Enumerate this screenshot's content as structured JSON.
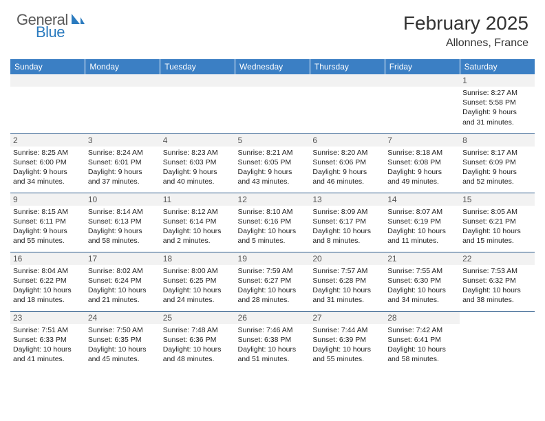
{
  "logo": {
    "word1": "General",
    "word2": "Blue",
    "icon_color": "#2b7bbf",
    "text_gray": "#5a5a5a"
  },
  "title": "February 2025",
  "location": "Allonnes, France",
  "colors": {
    "header_bg": "#3b7fc4",
    "header_text": "#ffffff",
    "daynum_bg": "#f2f2f2",
    "row_border": "#2b5a8a",
    "body_text": "#222222"
  },
  "day_headers": [
    "Sunday",
    "Monday",
    "Tuesday",
    "Wednesday",
    "Thursday",
    "Friday",
    "Saturday"
  ],
  "weeks": [
    [
      null,
      null,
      null,
      null,
      null,
      null,
      {
        "n": "1",
        "sr": "Sunrise: 8:27 AM",
        "ss": "Sunset: 5:58 PM",
        "dl1": "Daylight: 9 hours",
        "dl2": "and 31 minutes."
      }
    ],
    [
      {
        "n": "2",
        "sr": "Sunrise: 8:25 AM",
        "ss": "Sunset: 6:00 PM",
        "dl1": "Daylight: 9 hours",
        "dl2": "and 34 minutes."
      },
      {
        "n": "3",
        "sr": "Sunrise: 8:24 AM",
        "ss": "Sunset: 6:01 PM",
        "dl1": "Daylight: 9 hours",
        "dl2": "and 37 minutes."
      },
      {
        "n": "4",
        "sr": "Sunrise: 8:23 AM",
        "ss": "Sunset: 6:03 PM",
        "dl1": "Daylight: 9 hours",
        "dl2": "and 40 minutes."
      },
      {
        "n": "5",
        "sr": "Sunrise: 8:21 AM",
        "ss": "Sunset: 6:05 PM",
        "dl1": "Daylight: 9 hours",
        "dl2": "and 43 minutes."
      },
      {
        "n": "6",
        "sr": "Sunrise: 8:20 AM",
        "ss": "Sunset: 6:06 PM",
        "dl1": "Daylight: 9 hours",
        "dl2": "and 46 minutes."
      },
      {
        "n": "7",
        "sr": "Sunrise: 8:18 AM",
        "ss": "Sunset: 6:08 PM",
        "dl1": "Daylight: 9 hours",
        "dl2": "and 49 minutes."
      },
      {
        "n": "8",
        "sr": "Sunrise: 8:17 AM",
        "ss": "Sunset: 6:09 PM",
        "dl1": "Daylight: 9 hours",
        "dl2": "and 52 minutes."
      }
    ],
    [
      {
        "n": "9",
        "sr": "Sunrise: 8:15 AM",
        "ss": "Sunset: 6:11 PM",
        "dl1": "Daylight: 9 hours",
        "dl2": "and 55 minutes."
      },
      {
        "n": "10",
        "sr": "Sunrise: 8:14 AM",
        "ss": "Sunset: 6:13 PM",
        "dl1": "Daylight: 9 hours",
        "dl2": "and 58 minutes."
      },
      {
        "n": "11",
        "sr": "Sunrise: 8:12 AM",
        "ss": "Sunset: 6:14 PM",
        "dl1": "Daylight: 10 hours",
        "dl2": "and 2 minutes."
      },
      {
        "n": "12",
        "sr": "Sunrise: 8:10 AM",
        "ss": "Sunset: 6:16 PM",
        "dl1": "Daylight: 10 hours",
        "dl2": "and 5 minutes."
      },
      {
        "n": "13",
        "sr": "Sunrise: 8:09 AM",
        "ss": "Sunset: 6:17 PM",
        "dl1": "Daylight: 10 hours",
        "dl2": "and 8 minutes."
      },
      {
        "n": "14",
        "sr": "Sunrise: 8:07 AM",
        "ss": "Sunset: 6:19 PM",
        "dl1": "Daylight: 10 hours",
        "dl2": "and 11 minutes."
      },
      {
        "n": "15",
        "sr": "Sunrise: 8:05 AM",
        "ss": "Sunset: 6:21 PM",
        "dl1": "Daylight: 10 hours",
        "dl2": "and 15 minutes."
      }
    ],
    [
      {
        "n": "16",
        "sr": "Sunrise: 8:04 AM",
        "ss": "Sunset: 6:22 PM",
        "dl1": "Daylight: 10 hours",
        "dl2": "and 18 minutes."
      },
      {
        "n": "17",
        "sr": "Sunrise: 8:02 AM",
        "ss": "Sunset: 6:24 PM",
        "dl1": "Daylight: 10 hours",
        "dl2": "and 21 minutes."
      },
      {
        "n": "18",
        "sr": "Sunrise: 8:00 AM",
        "ss": "Sunset: 6:25 PM",
        "dl1": "Daylight: 10 hours",
        "dl2": "and 24 minutes."
      },
      {
        "n": "19",
        "sr": "Sunrise: 7:59 AM",
        "ss": "Sunset: 6:27 PM",
        "dl1": "Daylight: 10 hours",
        "dl2": "and 28 minutes."
      },
      {
        "n": "20",
        "sr": "Sunrise: 7:57 AM",
        "ss": "Sunset: 6:28 PM",
        "dl1": "Daylight: 10 hours",
        "dl2": "and 31 minutes."
      },
      {
        "n": "21",
        "sr": "Sunrise: 7:55 AM",
        "ss": "Sunset: 6:30 PM",
        "dl1": "Daylight: 10 hours",
        "dl2": "and 34 minutes."
      },
      {
        "n": "22",
        "sr": "Sunrise: 7:53 AM",
        "ss": "Sunset: 6:32 PM",
        "dl1": "Daylight: 10 hours",
        "dl2": "and 38 minutes."
      }
    ],
    [
      {
        "n": "23",
        "sr": "Sunrise: 7:51 AM",
        "ss": "Sunset: 6:33 PM",
        "dl1": "Daylight: 10 hours",
        "dl2": "and 41 minutes."
      },
      {
        "n": "24",
        "sr": "Sunrise: 7:50 AM",
        "ss": "Sunset: 6:35 PM",
        "dl1": "Daylight: 10 hours",
        "dl2": "and 45 minutes."
      },
      {
        "n": "25",
        "sr": "Sunrise: 7:48 AM",
        "ss": "Sunset: 6:36 PM",
        "dl1": "Daylight: 10 hours",
        "dl2": "and 48 minutes."
      },
      {
        "n": "26",
        "sr": "Sunrise: 7:46 AM",
        "ss": "Sunset: 6:38 PM",
        "dl1": "Daylight: 10 hours",
        "dl2": "and 51 minutes."
      },
      {
        "n": "27",
        "sr": "Sunrise: 7:44 AM",
        "ss": "Sunset: 6:39 PM",
        "dl1": "Daylight: 10 hours",
        "dl2": "and 55 minutes."
      },
      {
        "n": "28",
        "sr": "Sunrise: 7:42 AM",
        "ss": "Sunset: 6:41 PM",
        "dl1": "Daylight: 10 hours",
        "dl2": "and 58 minutes."
      },
      null
    ]
  ]
}
